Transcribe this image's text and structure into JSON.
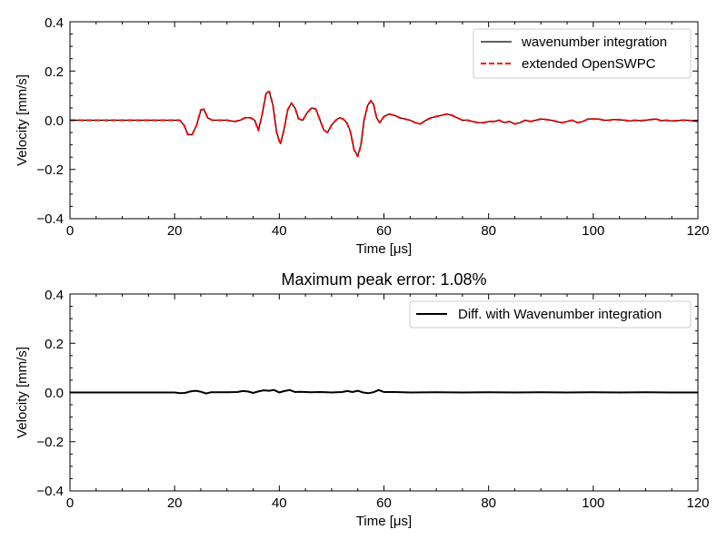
{
  "chart_data": [
    {
      "type": "line",
      "title": "",
      "xlabel": "Time [μs]",
      "ylabel": "Velocity [mm/s]",
      "xlim": [
        0,
        120
      ],
      "ylim": [
        -0.4,
        0.4
      ],
      "xticks": [
        "0",
        "20",
        "40",
        "60",
        "80",
        "100",
        "120"
      ],
      "yticks": [
        "−0.4",
        "−0.2",
        "0.0",
        "0.2",
        "0.4"
      ],
      "grid": false,
      "legend_position": "top-right",
      "series": [
        {
          "name": "wavenumber integration",
          "color": "#000000",
          "style": "solid",
          "x": [
            0,
            10,
            20,
            21.0,
            21.8,
            22.5,
            23.3,
            24.2,
            25.0,
            25.6,
            26.3,
            27.2,
            28.5,
            30,
            31.5,
            32.5,
            33.5,
            34.5,
            35.3,
            36.0,
            36.7,
            37.5,
            38.1,
            38.8,
            39.5,
            40.2,
            40.9,
            41.6,
            42.3,
            43.0,
            43.7,
            44.5,
            45.3,
            46.2,
            47.0,
            47.8,
            48.5,
            49.2,
            50.0,
            50.8,
            51.5,
            52.2,
            52.9,
            53.6,
            54.3,
            55.0,
            55.6,
            56.2,
            56.9,
            57.5,
            58.0,
            58.6,
            59.2,
            60.0,
            61.0,
            62.0,
            63.0,
            64.0,
            65.0,
            66.0,
            67.0,
            68.0,
            69.0,
            70.0,
            71.0,
            72.0,
            73.0,
            74.0,
            75.0,
            76.0,
            77.0,
            78.0,
            79.0,
            80.0,
            81.0,
            82.0,
            83.0,
            84.0,
            85.0,
            86.0,
            87.0,
            88.0,
            89.0,
            90.0,
            91.0,
            92.0,
            93.0,
            94.0,
            95.0,
            96.0,
            97.0,
            98.0,
            99.0,
            100.0,
            101.0,
            102.0,
            103.0,
            104.0,
            105.0,
            106.0,
            107.0,
            108.0,
            109.0,
            110.0,
            111.0,
            112.0,
            113.0,
            114.0,
            115.0,
            116.0,
            117.0,
            118.0,
            119.0,
            120.0
          ],
          "y": [
            0,
            0,
            0,
            0.0,
            -0.02,
            -0.055,
            -0.06,
            -0.02,
            0.04,
            0.045,
            0.01,
            0.0,
            0.0,
            0.0,
            -0.005,
            0.0,
            0.01,
            0.01,
            0.0,
            -0.04,
            0.02,
            0.11,
            0.115,
            0.06,
            -0.05,
            -0.095,
            -0.04,
            0.04,
            0.07,
            0.05,
            0.005,
            0.0,
            0.03,
            0.05,
            0.045,
            0.0,
            -0.04,
            -0.05,
            -0.02,
            0.0,
            0.01,
            0.005,
            -0.01,
            -0.045,
            -0.12,
            -0.145,
            -0.1,
            0.0,
            0.06,
            0.08,
            0.065,
            0.01,
            -0.01,
            0.015,
            0.025,
            0.02,
            0.01,
            0.005,
            0.0,
            -0.01,
            -0.015,
            0.0,
            0.01,
            0.015,
            0.02,
            0.025,
            0.02,
            0.01,
            0.0,
            0.0,
            -0.005,
            -0.01,
            -0.01,
            -0.005,
            -0.005,
            0.0,
            -0.01,
            -0.005,
            -0.015,
            -0.01,
            0.0,
            -0.005,
            0.0,
            0.005,
            0.003,
            0.0,
            -0.005,
            -0.01,
            -0.005,
            0.0,
            -0.01,
            -0.005,
            0.005,
            0.005,
            0.005,
            0.0,
            0.0,
            0.003,
            0.002,
            0.0,
            -0.003,
            0.0,
            -0.002,
            0.0,
            0.003,
            0.005,
            -0.002,
            0.0,
            -0.003,
            -0.002,
            0.0,
            0.0,
            -0.003,
            -0.005
          ]
        },
        {
          "name": "extended OpenSWPC",
          "color": "#ff0000",
          "style": "dashed",
          "x": [
            0,
            10,
            20,
            21.0,
            21.8,
            22.5,
            23.3,
            24.2,
            25.0,
            25.6,
            26.3,
            27.2,
            28.5,
            30,
            31.5,
            32.5,
            33.5,
            34.5,
            35.3,
            36.0,
            36.7,
            37.5,
            38.1,
            38.8,
            39.5,
            40.2,
            40.9,
            41.6,
            42.3,
            43.0,
            43.7,
            44.5,
            45.3,
            46.2,
            47.0,
            47.8,
            48.5,
            49.2,
            50.0,
            50.8,
            51.5,
            52.2,
            52.9,
            53.6,
            54.3,
            55.0,
            55.6,
            56.2,
            56.9,
            57.5,
            58.0,
            58.6,
            59.2,
            60.0,
            61.0,
            62.0,
            63.0,
            64.0,
            65.0,
            66.0,
            67.0,
            68.0,
            69.0,
            70.0,
            71.0,
            72.0,
            73.0,
            74.0,
            75.0,
            76.0,
            77.0,
            78.0,
            79.0,
            80.0,
            81.0,
            82.0,
            83.0,
            84.0,
            85.0,
            86.0,
            87.0,
            88.0,
            89.0,
            90.0,
            91.0,
            92.0,
            93.0,
            94.0,
            95.0,
            96.0,
            97.0,
            98.0,
            99.0,
            100.0,
            101.0,
            102.0,
            103.0,
            104.0,
            105.0,
            106.0,
            107.0,
            108.0,
            109.0,
            110.0,
            111.0,
            112.0,
            113.0,
            114.0,
            115.0,
            116.0,
            117.0,
            118.0,
            119.0,
            120.0
          ],
          "y": [
            0,
            0,
            0,
            0.0,
            -0.02,
            -0.058,
            -0.06,
            -0.02,
            0.042,
            0.045,
            0.01,
            0.0,
            0.0,
            0.0,
            -0.005,
            0.0,
            0.01,
            0.01,
            0.0,
            -0.042,
            0.02,
            0.112,
            0.117,
            0.06,
            -0.052,
            -0.097,
            -0.04,
            0.042,
            0.07,
            0.05,
            0.005,
            0.0,
            0.03,
            0.05,
            0.045,
            0.0,
            -0.04,
            -0.05,
            -0.02,
            0.0,
            0.01,
            0.005,
            -0.01,
            -0.047,
            -0.122,
            -0.147,
            -0.1,
            0.0,
            0.06,
            0.08,
            0.065,
            0.01,
            -0.01,
            0.015,
            0.025,
            0.02,
            0.01,
            0.005,
            0.0,
            -0.01,
            -0.015,
            0.0,
            0.01,
            0.015,
            0.02,
            0.025,
            0.02,
            0.01,
            0.0,
            0.0,
            -0.005,
            -0.01,
            -0.01,
            -0.005,
            -0.005,
            0.0,
            -0.01,
            -0.005,
            -0.015,
            -0.01,
            0.0,
            -0.005,
            0.0,
            0.005,
            0.003,
            0.0,
            -0.005,
            -0.01,
            -0.005,
            0.0,
            -0.01,
            -0.005,
            0.005,
            0.005,
            0.005,
            0.0,
            0.0,
            0.003,
            0.002,
            0.0,
            -0.003,
            0.0,
            -0.002,
            0.0,
            0.003,
            0.005,
            -0.002,
            0.0,
            -0.003,
            -0.002,
            0.0,
            0.0,
            -0.003,
            -0.005
          ]
        }
      ]
    },
    {
      "type": "line",
      "title": "Maximum peak error: 1.08%",
      "xlabel": "Time [μs]",
      "ylabel": "Velocity [mm/s]",
      "xlim": [
        0,
        120
      ],
      "ylim": [
        -0.4,
        0.4
      ],
      "xticks": [
        "0",
        "20",
        "40",
        "60",
        "80",
        "100",
        "120"
      ],
      "yticks": [
        "−0.4",
        "−0.2",
        "0.0",
        "0.2",
        "0.4"
      ],
      "grid": false,
      "legend_position": "top-right",
      "series": [
        {
          "name": "Diff. with Wavenumber integration",
          "color": "#000000",
          "style": "solid",
          "x": [
            0,
            10,
            20,
            21,
            22,
            23,
            24,
            25,
            26,
            27,
            28,
            30,
            32,
            33,
            34,
            35,
            36,
            37,
            38,
            39,
            40,
            41,
            42,
            43,
            44,
            46,
            48,
            50,
            52,
            53,
            54,
            55,
            56,
            57,
            58,
            59,
            60,
            62,
            65,
            70,
            75,
            80,
            85,
            90,
            95,
            100,
            105,
            110,
            115,
            120
          ],
          "y": [
            0,
            0,
            0,
            -0.003,
            -0.002,
            0.004,
            0.007,
            0.003,
            -0.004,
            0.001,
            0.001,
            0.001,
            0.002,
            0.006,
            0.004,
            -0.002,
            0.004,
            0.009,
            0.007,
            0.01,
            0.0,
            0.006,
            0.01,
            0.002,
            0.003,
            0.001,
            0.002,
            0.0,
            0.002,
            0.006,
            0.002,
            0.007,
            0.0,
            -0.003,
            0.001,
            0.01,
            0.002,
            0.002,
            0.0,
            0.001,
            0.0,
            0.001,
            0.0,
            0.001,
            0.0,
            0.001,
            0.0,
            0.001,
            0.0,
            0.0
          ]
        }
      ]
    }
  ]
}
